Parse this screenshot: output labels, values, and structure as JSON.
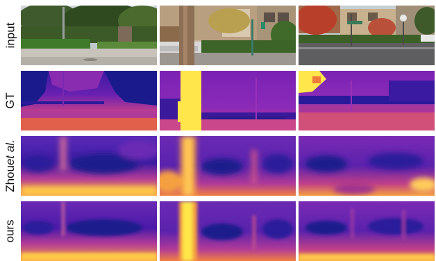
{
  "rows": [
    {
      "label": "input",
      "kind": "photo"
    },
    {
      "label": "GT",
      "kind": "sparse-depth"
    },
    {
      "label_prefix": "Zhou ",
      "label_italic": "et al.",
      "kind": "dense-depth-blurry"
    },
    {
      "label": "ours",
      "kind": "dense-depth-sharp"
    }
  ],
  "columns": [
    {
      "scene": "street-with-hedges-and-trees"
    },
    {
      "scene": "tree-trunk-with-parked-car"
    },
    {
      "scene": "intersection-with-street-sign"
    }
  ],
  "colors": {
    "depth_far": "#1a1a8c",
    "depth_mid": "#9a2bb8",
    "depth_near": "#f07a3c",
    "depth_nearest": "#ffe64a"
  }
}
